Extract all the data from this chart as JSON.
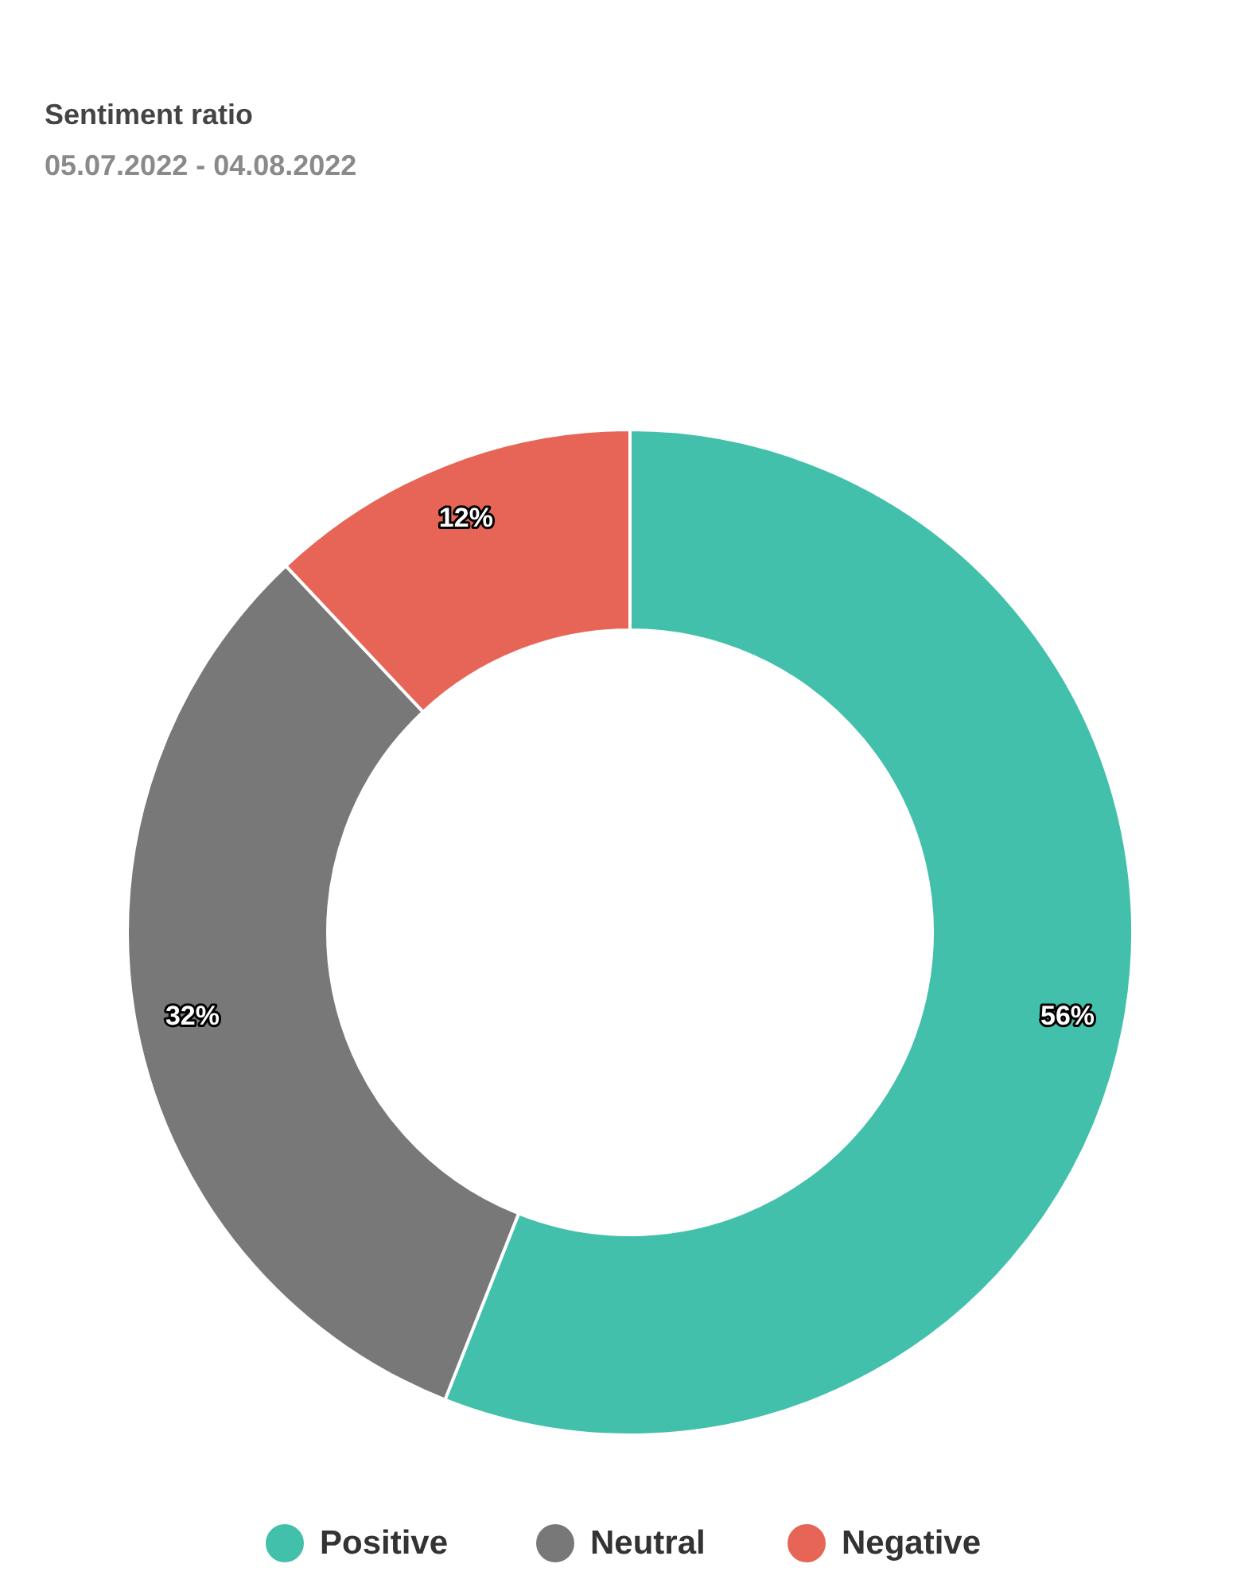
{
  "chart_data": {
    "type": "donut",
    "title": "Sentiment ratio",
    "subtitle": "05.07.2022 - 04.08.2022",
    "categories": [
      "Positive",
      "Neutral",
      "Negative"
    ],
    "values": [
      56,
      32,
      12
    ],
    "colors": [
      "#43c0ab",
      "#787878",
      "#e76557"
    ],
    "value_labels": [
      "56%",
      "32%",
      "12%"
    ],
    "legend": "bottom"
  }
}
